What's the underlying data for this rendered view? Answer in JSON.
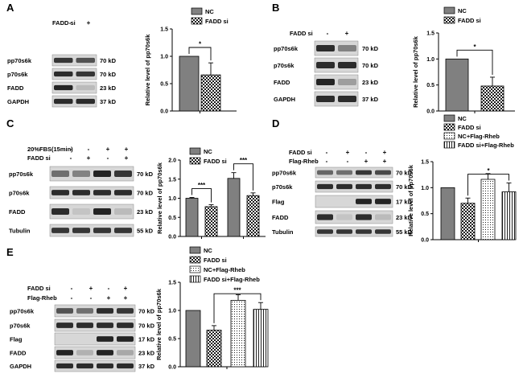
{
  "figure": {
    "panels": [
      {
        "id": "A",
        "blot": {
          "treatments": [
            {
              "label": "FADD si",
              "values": [
                "-",
                "+"
              ]
            }
          ],
          "bands": [
            {
              "name": "pp70s6k",
              "size": "70 kD"
            },
            {
              "name": "p70s6k",
              "size": "70 kD"
            },
            {
              "name": "FADD",
              "size": "23 kD"
            },
            {
              "name": "GAPDH",
              "size": "37 kD"
            }
          ]
        },
        "chart_data": {
          "type": "bar",
          "ylabel": "Relative level of pp70s6k",
          "ylim": [
            0,
            1.5
          ],
          "yticks": [
            "0.0",
            "0.5",
            "1.0",
            "1.5"
          ],
          "legend": [
            "NC",
            "FADD si"
          ],
          "legend_position": "top-right",
          "patterns": [
            "gray",
            "check"
          ],
          "groups": [
            {
              "values": [
                1.0,
                0.66
              ],
              "errors": [
                0,
                0.22
              ]
            }
          ],
          "significance": [
            {
              "text": "*"
            }
          ]
        }
      },
      {
        "id": "B",
        "blot": {
          "treatments": [
            {
              "label": "FADD si",
              "values": [
                "-",
                "+"
              ]
            }
          ],
          "bands": [
            {
              "name": "pp70s6k",
              "size": "70 kD"
            },
            {
              "name": "p70s6k",
              "size": "70 kD"
            },
            {
              "name": "FADD",
              "size": "23 kD"
            },
            {
              "name": "GAPDH",
              "size": "37 kD"
            }
          ]
        },
        "chart_data": {
          "type": "bar",
          "ylabel": "Relative level of pp70s6k",
          "ylim": [
            0,
            1.5
          ],
          "yticks": [
            "0.0",
            "0.5",
            "1.0",
            "1.5"
          ],
          "legend": [
            "NC",
            "FADD si"
          ],
          "legend_position": "top-right",
          "patterns": [
            "gray",
            "check"
          ],
          "groups": [
            {
              "values": [
                1.0,
                0.48
              ],
              "errors": [
                0,
                0.17
              ]
            }
          ],
          "significance": [
            {
              "text": "*"
            }
          ]
        }
      },
      {
        "id": "C",
        "blot": {
          "treatments": [
            {
              "label": "20%FBS(15min)",
              "values": [
                "-",
                "-",
                "+",
                "+"
              ]
            },
            {
              "label": "FADD si",
              "values": [
                "-",
                "+",
                "-",
                "+"
              ]
            }
          ],
          "bands": [
            {
              "name": "pp70s6k",
              "size": "70 kD"
            },
            {
              "name": "p70s6k",
              "size": "70 kD"
            },
            {
              "name": "FADD",
              "size": "23 kD"
            },
            {
              "name": "Tubulin",
              "size": "55 kD"
            }
          ]
        },
        "chart_data": {
          "type": "bar",
          "ylabel": "Relative level of pp70s6k",
          "ylim": [
            0,
            2.0
          ],
          "yticks": [
            "0.0",
            "0.5",
            "1.0",
            "1.5",
            "2.0"
          ],
          "legend": [
            "NC",
            "FADD si"
          ],
          "legend_position": "top-right",
          "patterns": [
            "gray",
            "check"
          ],
          "groups": [
            {
              "values": [
                1.0,
                0.78
              ],
              "errors": [
                0.02,
                0.05
              ]
            },
            {
              "values": [
                1.52,
                1.07
              ],
              "errors": [
                0.15,
                0.07
              ]
            }
          ],
          "significance": [
            {
              "text": "***"
            },
            {
              "text": "***"
            }
          ]
        }
      },
      {
        "id": "D",
        "blot": {
          "treatments": [
            {
              "label": "FADD si",
              "values": [
                "-",
                "+",
                "-",
                "+"
              ]
            },
            {
              "label": "Flag-Rheb",
              "values": [
                "-",
                "-",
                "+",
                "+"
              ]
            }
          ],
          "bands": [
            {
              "name": "pp70s6k",
              "size": "70 kD"
            },
            {
              "name": "p70s6k",
              "size": "70 kD"
            },
            {
              "name": "Flag",
              "size": "17 kD"
            },
            {
              "name": "FADD",
              "size": "23 kD"
            },
            {
              "name": "Tubulin",
              "size": "55 kD"
            }
          ]
        },
        "chart_data": {
          "type": "bar",
          "ylabel": "Relative level of pp70s6k",
          "ylim": [
            0,
            1.5
          ],
          "yticks": [
            "0.0",
            "0.5",
            "1.0",
            "1.5"
          ],
          "legend": [
            "NC",
            "FADD si",
            "NC+Flag-Rheb",
            "FADD si+Flag-Rheb"
          ],
          "legend_position": "top",
          "patterns": [
            "gray",
            "check",
            "stipple",
            "vlines"
          ],
          "groups": [
            {
              "values": [
                1.0,
                0.7,
                1.16,
                0.92
              ],
              "errors": [
                0,
                0.1,
                0.11,
                0.17
              ]
            }
          ],
          "significance": [
            {
              "text": "*"
            }
          ]
        }
      },
      {
        "id": "E",
        "blot": {
          "treatments": [
            {
              "label": "FADD si",
              "values": [
                "-",
                "+",
                "-",
                "+"
              ]
            },
            {
              "label": "Flag-Rheb",
              "values": [
                "-",
                "-",
                "+",
                "+"
              ]
            }
          ],
          "bands": [
            {
              "name": "pp70s6k",
              "size": "70 kD"
            },
            {
              "name": "p70s6k",
              "size": "70 kD"
            },
            {
              "name": "Flag",
              "size": "17 kD"
            },
            {
              "name": "FADD",
              "size": "23 kD"
            },
            {
              "name": "GAPDH",
              "size": "37 kD"
            }
          ]
        },
        "chart_data": {
          "type": "bar",
          "ylabel": "Relative level of pp70s6k",
          "ylim": [
            0,
            1.5
          ],
          "yticks": [
            "0.0",
            "0.5",
            "1.0",
            "1.5"
          ],
          "legend": [
            "NC",
            "FADD si",
            "NC+Flag-Rheb",
            "FADD si+Flag-Rheb"
          ],
          "legend_position": "top",
          "patterns": [
            "gray",
            "check",
            "stipple",
            "vlines"
          ],
          "groups": [
            {
              "values": [
                1.0,
                0.65,
                1.18,
                1.02
              ],
              "errors": [
                0,
                0.08,
                0.1,
                0.12
              ]
            }
          ],
          "significance": [
            {
              "text": "***"
            }
          ]
        }
      }
    ],
    "colors": {
      "bar_gray": "#808080",
      "ink": "#000000",
      "blot_bg": "#d7d7d7",
      "band": "#1a1a1a"
    }
  }
}
